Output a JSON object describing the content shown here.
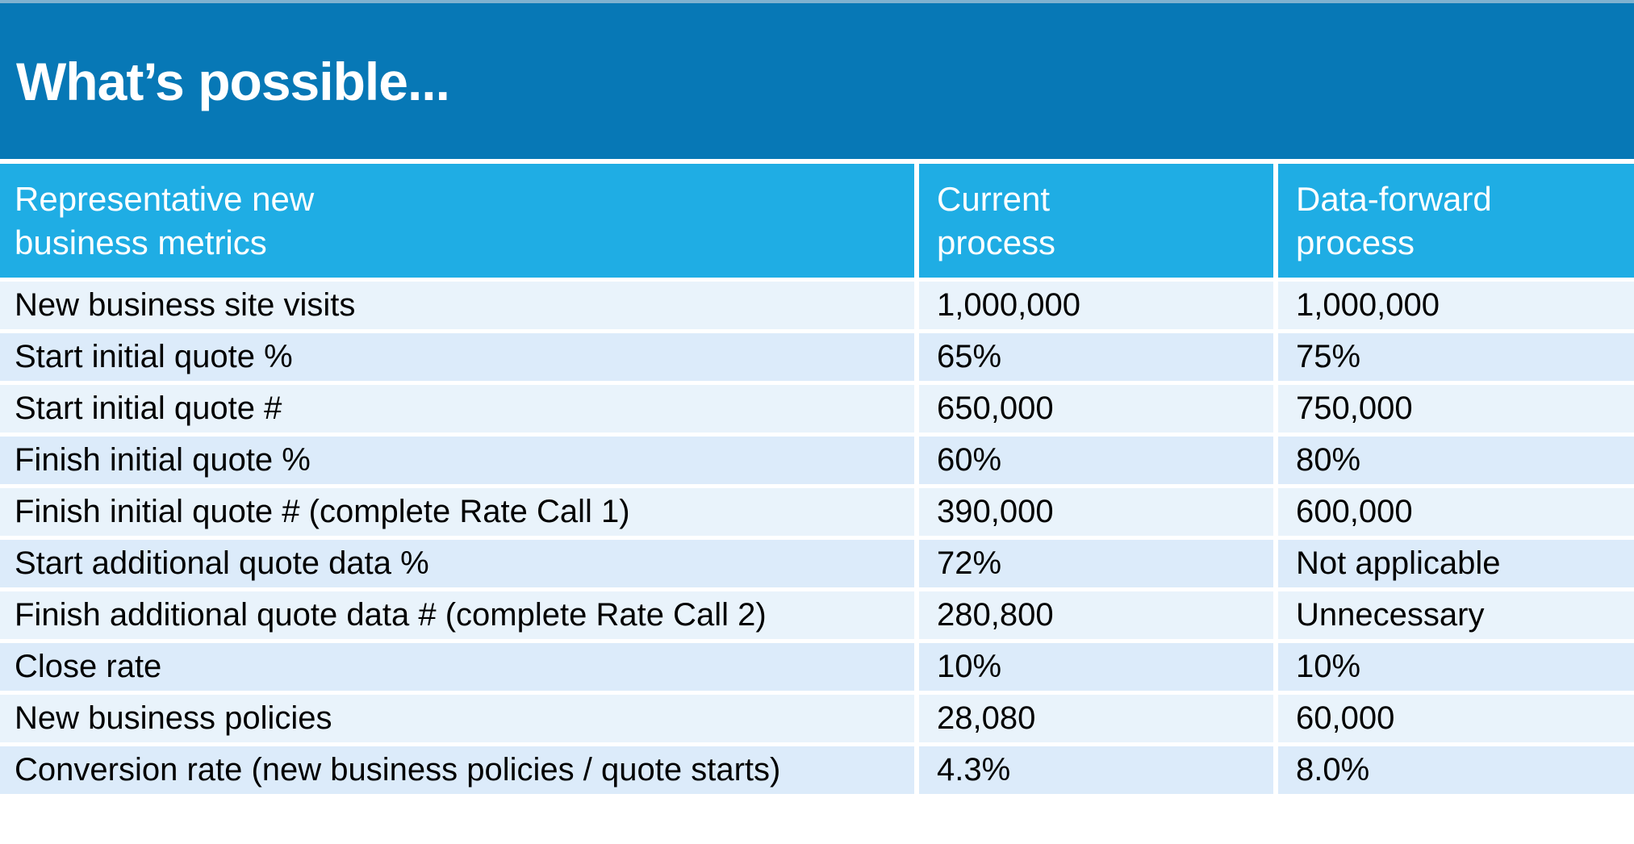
{
  "slide": {
    "title": "What’s possible..."
  },
  "colors": {
    "top_strip": "#7fb2d0",
    "title_band": "#0778b6",
    "header_row": "#1fade4",
    "row_light": "#e9f3fb",
    "row_dark": "#dcebfa",
    "header_text": "#ffffff",
    "cell_text": "#000000"
  },
  "table": {
    "columns": [
      {
        "label": "Representative new\nbusiness metrics"
      },
      {
        "label": "Current\nprocess"
      },
      {
        "label": "Data-forward\nprocess"
      }
    ],
    "rows": [
      {
        "metric": "New business site visits",
        "current": "1,000,000",
        "data_forward": "1,000,000"
      },
      {
        "metric": "Start initial quote %",
        "current": "65%",
        "data_forward": "75%"
      },
      {
        "metric": "Start initial quote #",
        "current": "650,000",
        "data_forward": "750,000"
      },
      {
        "metric": "Finish initial quote %",
        "current": "60%",
        "data_forward": "80%"
      },
      {
        "metric": "Finish initial quote # (complete Rate Call 1)",
        "current": "390,000",
        "data_forward": "600,000"
      },
      {
        "metric": "Start additional quote data %",
        "current": "72%",
        "data_forward": "Not applicable"
      },
      {
        "metric": "Finish additional quote data # (complete Rate Call 2)",
        "current": "280,800",
        "data_forward": "Unnecessary"
      },
      {
        "metric": "Close rate",
        "current": "10%",
        "data_forward": "10%"
      },
      {
        "metric": "New business policies",
        "current": "28,080",
        "data_forward": "60,000"
      },
      {
        "metric": "Conversion rate (new business policies / quote starts)",
        "current": "4.3%",
        "data_forward": "8.0%"
      }
    ]
  }
}
